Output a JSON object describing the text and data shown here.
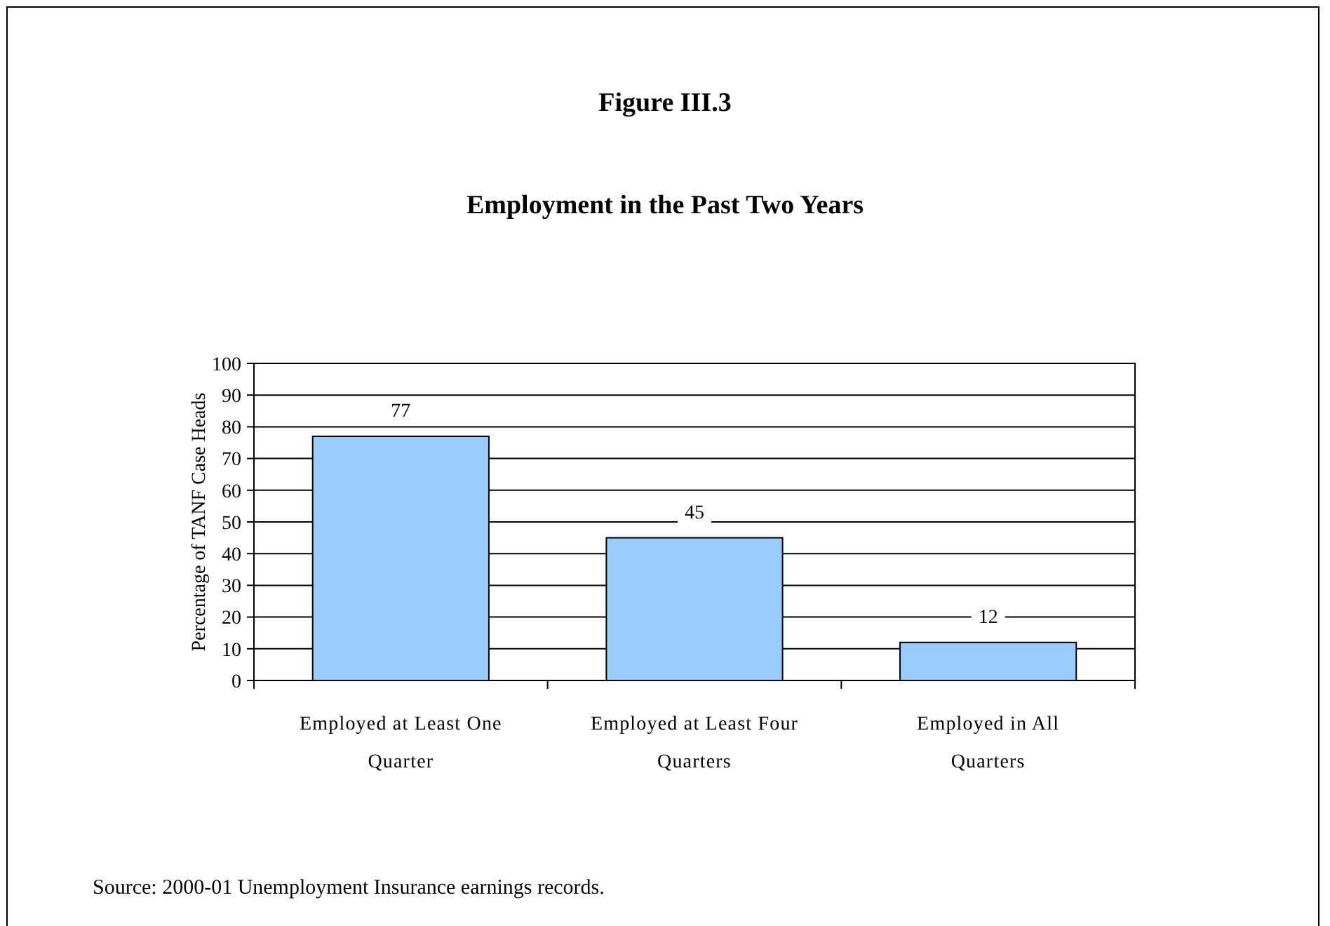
{
  "chart_data": {
    "type": "bar",
    "title": "Figure III.3",
    "subtitle": "Employment in the Past Two Years",
    "ylabel": "Percentage of TANF Case Heads",
    "categories": [
      "Employed at Least One Quarter",
      "Employed at Least Four Quarters",
      "Employed in All Quarters"
    ],
    "values": [
      77,
      45,
      12
    ],
    "color": "#99ccff",
    "data_labels": true,
    "grid": "y",
    "ylim": [
      0,
      100
    ],
    "yticks": [
      0,
      10,
      20,
      30,
      40,
      50,
      60,
      70,
      80,
      90,
      100
    ],
    "annotations": [
      "Source:  2000-01 Unemployment Insurance earnings records."
    ]
  }
}
